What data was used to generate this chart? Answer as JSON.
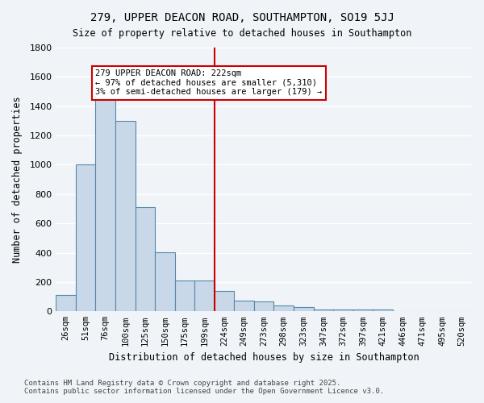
{
  "title": "279, UPPER DEACON ROAD, SOUTHAMPTON, SO19 5JJ",
  "subtitle": "Size of property relative to detached houses in Southampton",
  "xlabel": "Distribution of detached houses by size in Southampton",
  "ylabel": "Number of detached properties",
  "categories": [
    "26sqm",
    "51sqm",
    "76sqm",
    "100sqm",
    "125sqm",
    "150sqm",
    "175sqm",
    "199sqm",
    "224sqm",
    "249sqm",
    "273sqm",
    "298sqm",
    "323sqm",
    "347sqm",
    "372sqm",
    "397sqm",
    "421sqm",
    "446sqm",
    "471sqm",
    "495sqm",
    "520sqm"
  ],
  "values": [
    110,
    1000,
    1500,
    1300,
    710,
    405,
    210,
    210,
    140,
    75,
    70,
    40,
    30,
    15,
    10,
    10,
    10,
    0,
    0,
    0,
    0
  ],
  "bar_color": "#c8d8e8",
  "bar_edge_color": "#5588aa",
  "highlight_index": 8,
  "vline_x": 8,
  "annotation_text": "279 UPPER DEACON ROAD: 222sqm\n← 97% of detached houses are smaller (5,310)\n3% of semi-detached houses are larger (179) →",
  "annotation_box_color": "#ffffff",
  "annotation_box_edge_color": "#cc0000",
  "vline_color": "#cc0000",
  "footer_line1": "Contains HM Land Registry data © Crown copyright and database right 2025.",
  "footer_line2": "Contains public sector information licensed under the Open Government Licence v3.0.",
  "background_color": "#f0f4f8",
  "plot_background_color": "#f0f4f8",
  "grid_color": "#ffffff",
  "ylim": [
    0,
    1800
  ],
  "yticks": [
    0,
    200,
    400,
    600,
    800,
    1000,
    1200,
    1400,
    1600,
    1800
  ]
}
